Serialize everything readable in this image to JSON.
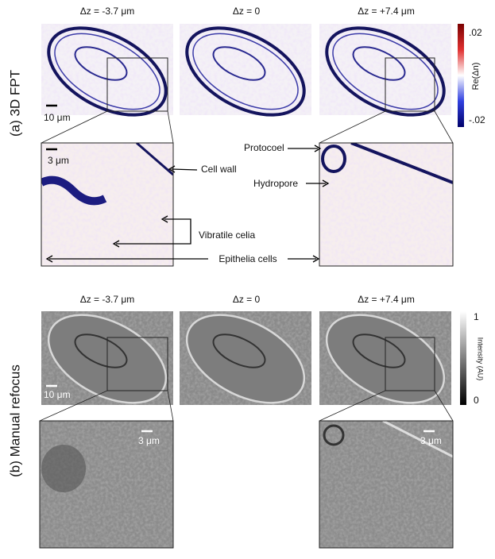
{
  "panel_a": {
    "label": "(a) 3D FPT",
    "columns": [
      "Δz = -3.7 μm",
      "Δz = 0",
      "Δz = +7.4 μm"
    ],
    "colorbar": {
      "title": "Re(Δn)",
      "top": ".02",
      "bottom": "-.02"
    },
    "scale_bars": [
      "10 μm",
      "3 μm"
    ],
    "annotations": [
      "Cell wall",
      "Vibratile celia",
      "Epithelia cells",
      "Protocoel",
      "Hydropore"
    ]
  },
  "panel_b": {
    "label": "(b) Manual refocus",
    "columns": [
      "Δz = -3.7 μm",
      "Δz = 0",
      "Δz = +7.4 μm"
    ],
    "colorbar": {
      "title": "Intensity (AU)",
      "top": "1",
      "bottom": "0"
    },
    "scale_bars": [
      "10 μm",
      "3 μm",
      "3 μm"
    ]
  }
}
